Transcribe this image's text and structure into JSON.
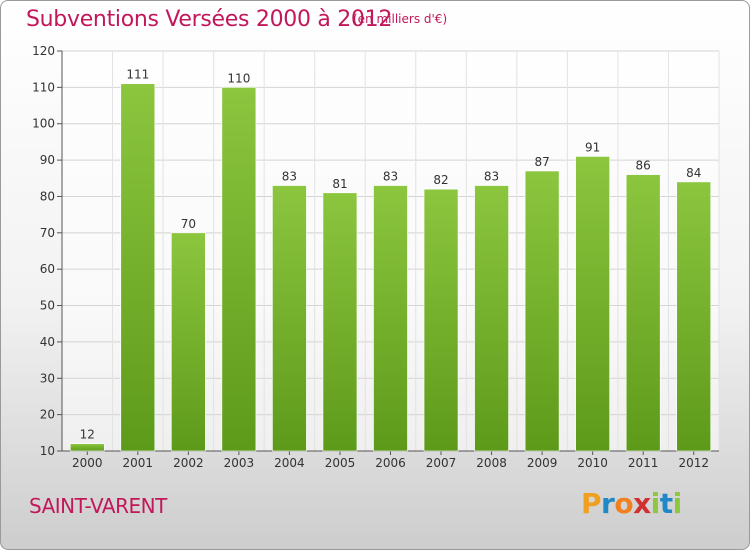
{
  "header": {
    "title": "Subventions Versées 2000 à 2012",
    "subtitle": "(en milliers d'€)"
  },
  "footer": {
    "commune": "SAINT-VARENT",
    "logo": {
      "letters": [
        "P",
        "r",
        "o",
        "x",
        "i",
        "t",
        "i"
      ],
      "colors": [
        "#f0a020",
        "#1e88c8",
        "#f08020",
        "#d03030",
        "#8dc63f",
        "#1e88c8",
        "#8dc63f"
      ]
    }
  },
  "chart_data": {
    "type": "bar",
    "categories": [
      "2000",
      "2001",
      "2002",
      "2003",
      "2004",
      "2005",
      "2006",
      "2007",
      "2008",
      "2009",
      "2010",
      "2011",
      "2012"
    ],
    "values": [
      12,
      111,
      70,
      110,
      83,
      81,
      83,
      82,
      83,
      87,
      91,
      86,
      84
    ],
    "ylim": [
      10,
      120
    ],
    "yticks": [
      10,
      20,
      30,
      40,
      50,
      60,
      70,
      80,
      90,
      100,
      110,
      120
    ],
    "grid": true,
    "bar_color": "#8cc63f",
    "bar_color_dark": "#5e9a1a"
  }
}
